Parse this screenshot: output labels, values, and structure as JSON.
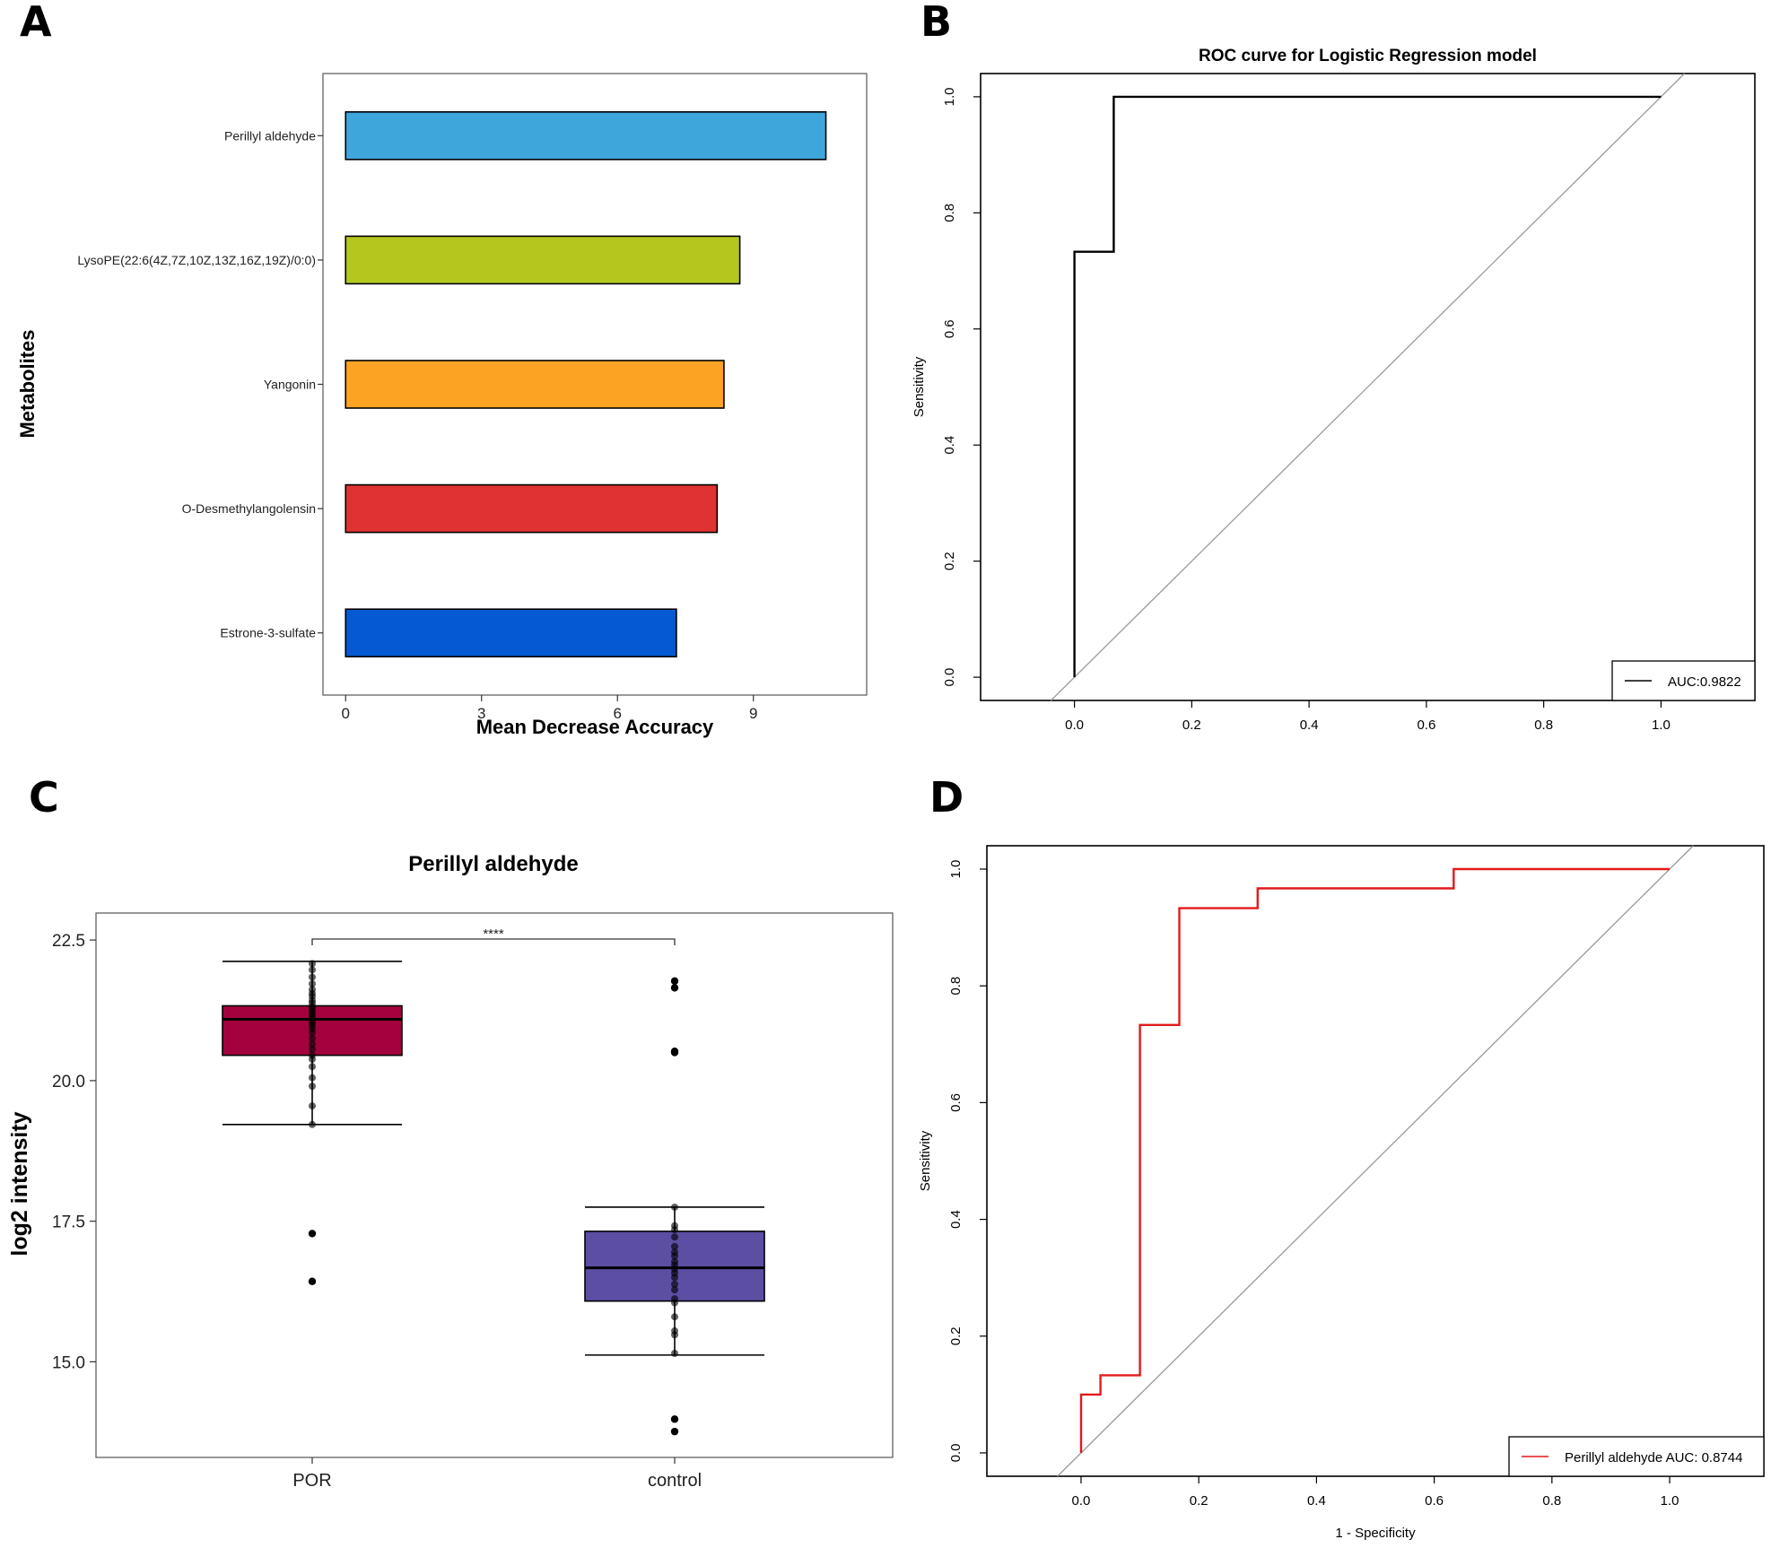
{
  "panel_labels": [
    "A",
    "B",
    "C",
    "D"
  ],
  "chart_data": [
    {
      "id": "A",
      "type": "bar",
      "orientation": "horizontal",
      "title": "",
      "xlabel": "Mean Decrease Accuracy",
      "ylabel": "Metabolites",
      "xlim": [
        -0.5,
        11.5
      ],
      "xticks": [
        0,
        3,
        6,
        9
      ],
      "categories": [
        "Perillyl aldehyde",
        "LysoPE(22:6(4Z,7Z,10Z,13Z,16Z,19Z)/0:0)",
        "Yangonin",
        "O-Desmethylangolensin",
        "Estrone-3-sulfate"
      ],
      "values": [
        10.6,
        8.7,
        8.35,
        8.2,
        7.3
      ],
      "colors": [
        "#3fa6dc",
        "#b4c71e",
        "#fca324",
        "#e03232",
        "#0559d3"
      ]
    },
    {
      "id": "B",
      "type": "line",
      "title": "ROC curve for Logistic Regression model",
      "xlabel": "",
      "ylabel": "Sensitivity",
      "xlim": [
        -0.16,
        1.16
      ],
      "ylim": [
        -0.04,
        1.04
      ],
      "xticks": [
        "0.0",
        "0.2",
        "0.4",
        "0.6",
        "0.8",
        "1.0"
      ],
      "yticks": [
        "0.0",
        "0.2",
        "0.4",
        "0.6",
        "0.8",
        "1.0"
      ],
      "series": [
        {
          "name": "AUC:0.9822",
          "color": "#000000",
          "x": [
            0,
            0,
            0.067,
            0.067,
            1.0
          ],
          "y": [
            0,
            0.733,
            0.733,
            1.0,
            1.0
          ]
        }
      ],
      "reference_line": true,
      "legend": "bottom-right"
    },
    {
      "id": "C",
      "type": "box",
      "title": "Perillyl aldehyde",
      "xlabel": "",
      "ylabel": "log2 intensity",
      "ylim": [
        13.3,
        22.98
      ],
      "yticks": [
        "15.0",
        "17.5",
        "20.0",
        "22.5"
      ],
      "categories": [
        "POR",
        "control"
      ],
      "significance": "****",
      "boxes": [
        {
          "name": "POR",
          "color": "#a3023f",
          "whisker_low": 19.22,
          "q1": 20.45,
          "median": 21.09,
          "q3": 21.33,
          "whisker_high": 22.12,
          "outliers": [
            17.28,
            16.43
          ],
          "points": [
            22.08,
            21.97,
            21.84,
            21.72,
            21.62,
            21.55,
            21.5,
            21.43,
            21.38,
            21.32,
            21.28,
            21.22,
            21.18,
            21.13,
            21.08,
            21.03,
            20.98,
            20.92,
            20.85,
            20.75,
            20.65,
            20.56,
            20.45,
            20.38,
            20.25,
            20.05,
            19.9,
            19.55,
            19.22
          ]
        },
        {
          "name": "control",
          "color": "#5c4ea3",
          "whisker_low": 15.12,
          "q1": 16.08,
          "median": 16.67,
          "q3": 17.32,
          "whisker_high": 17.75,
          "outliers": [
            21.77,
            21.65,
            20.52,
            20.5,
            13.98,
            13.76
          ],
          "points": [
            17.75,
            17.42,
            17.35,
            17.22,
            17.05,
            16.95,
            16.88,
            16.78,
            16.72,
            16.65,
            16.58,
            16.5,
            16.38,
            16.28,
            16.12,
            16.05,
            15.8,
            15.55,
            15.48,
            15.15
          ]
        }
      ]
    },
    {
      "id": "D",
      "type": "line",
      "title": "",
      "xlabel": "1 - Specificity",
      "ylabel": "Sensitivity",
      "xlim": [
        -0.16,
        1.16
      ],
      "ylim": [
        -0.04,
        1.04
      ],
      "xticks": [
        "0.0",
        "0.2",
        "0.4",
        "0.6",
        "0.8",
        "1.0"
      ],
      "yticks": [
        "0.0",
        "0.2",
        "0.4",
        "0.6",
        "0.8",
        "1.0"
      ],
      "series": [
        {
          "name": "Perillyl aldehyde AUC: 0.8744",
          "color": "#e41a1c",
          "x": [
            0,
            0,
            0.033,
            0.033,
            0.1,
            0.1,
            0.167,
            0.167,
            0.3,
            0.3,
            0.633,
            0.633,
            1.0
          ],
          "y": [
            0,
            0.1,
            0.1,
            0.133,
            0.133,
            0.733,
            0.733,
            0.933,
            0.933,
            0.967,
            0.967,
            1.0,
            1.0
          ]
        }
      ],
      "reference_line": true,
      "legend": "bottom-right"
    }
  ]
}
